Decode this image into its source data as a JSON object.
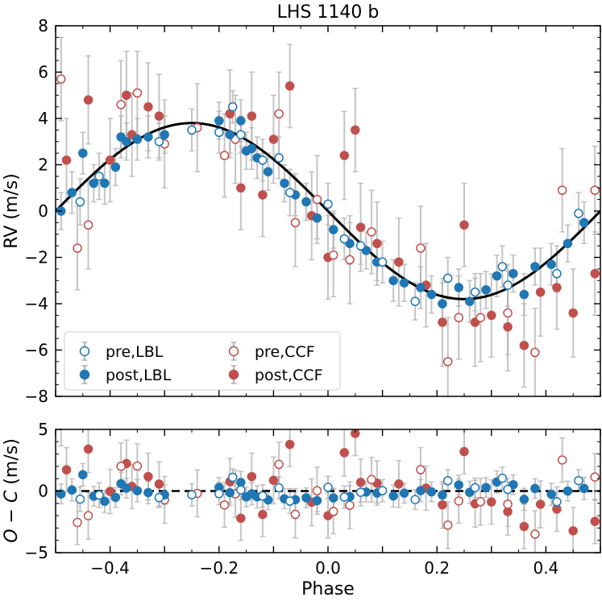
{
  "chart_data": {
    "type": "scatter",
    "title": "LHS 1140 b",
    "xlabel": "Phase",
    "xlim": [
      -0.5,
      0.5
    ],
    "xticks": [
      -0.4,
      -0.2,
      0.0,
      0.2,
      0.4
    ],
    "xtick_labels": [
      "−0.4",
      "−0.2",
      "0.0",
      "0.2",
      "0.4"
    ],
    "colors": {
      "lbl": "#1f77b4",
      "ccf": "#c0504d",
      "model": "#000000",
      "errorbar": "#b0b0b0"
    },
    "legend": {
      "placement": "lower-left",
      "entries": [
        {
          "label": "pre,LBL",
          "series": "pre_lbl"
        },
        {
          "label": "post,LBL",
          "series": "post_lbl"
        },
        {
          "label": "pre,CCF",
          "series": "pre_ccf"
        },
        {
          "label": "post,CCF",
          "series": "post_ccf"
        }
      ]
    },
    "top_panel": {
      "ylabel": "RV (m/s)",
      "ylim": [
        -8,
        8
      ],
      "yticks": [
        -8,
        -6,
        -4,
        -2,
        0,
        2,
        4,
        6,
        8
      ],
      "ytick_labels": [
        "−8",
        "−6",
        "−4",
        "−2",
        "0",
        "2",
        "4",
        "6",
        "8"
      ],
      "model": {
        "type": "sinusoid",
        "amplitude": 3.8,
        "min_phase": 0.25,
        "max_phase": -0.25
      }
    },
    "bottom_panel": {
      "ylabel": "O − C (m/s)",
      "ylim": [
        -5,
        5
      ],
      "yticks": [
        -5,
        0,
        5
      ],
      "ytick_labels": [
        "−5",
        "0",
        "5"
      ],
      "reference_line": 0
    },
    "series": [
      {
        "name": "pre_lbl",
        "label": "pre,LBL",
        "color": "#1f77b4",
        "filled": false,
        "x": [
          -0.455,
          -0.42,
          -0.31,
          -0.25,
          -0.2,
          -0.175,
          -0.16,
          -0.12,
          -0.09,
          -0.07,
          0.0,
          0.03,
          0.06,
          0.1,
          0.16,
          0.22,
          0.27,
          0.32,
          0.33,
          0.42,
          0.46
        ],
        "y": [
          0.4,
          1.5,
          3.0,
          3.5,
          3.4,
          4.5,
          3.3,
          2.2,
          2.3,
          0.8,
          0.3,
          -1.2,
          -1.5,
          -2.2,
          -3.9,
          -2.9,
          -3.5,
          -2.4,
          -3.2,
          -2.7,
          -0.1
        ],
        "yerr": [
          1.0,
          1.0,
          0.8,
          0.9,
          0.9,
          0.7,
          0.8,
          0.9,
          0.9,
          1.0,
          0.9,
          0.9,
          0.8,
          0.9,
          0.8,
          0.9,
          0.8,
          0.9,
          0.9,
          0.8,
          0.9
        ]
      },
      {
        "name": "post_lbl",
        "label": "post,LBL",
        "color": "#1f77b4",
        "filled": true,
        "x": [
          -0.49,
          -0.47,
          -0.45,
          -0.43,
          -0.41,
          -0.39,
          -0.38,
          -0.37,
          -0.35,
          -0.33,
          -0.3,
          -0.2,
          -0.18,
          -0.16,
          -0.15,
          -0.14,
          -0.13,
          -0.11,
          -0.08,
          -0.06,
          -0.04,
          -0.02,
          0.01,
          0.04,
          0.07,
          0.09,
          0.12,
          0.14,
          0.17,
          0.19,
          0.21,
          0.24,
          0.26,
          0.29,
          0.31,
          0.34,
          0.36,
          0.38,
          0.41,
          0.44,
          0.47
        ],
        "y": [
          0.0,
          0.8,
          2.5,
          1.2,
          1.2,
          1.9,
          3.2,
          3.0,
          3.1,
          3.2,
          3.3,
          3.9,
          3.3,
          3.9,
          2.6,
          2.7,
          2.3,
          1.7,
          1.2,
          0.7,
          0.4,
          -0.3,
          -0.8,
          -1.4,
          -1.7,
          -2.2,
          -3.0,
          -3.1,
          -3.3,
          -3.6,
          -4.0,
          -3.3,
          -3.9,
          -3.4,
          -2.8,
          -2.7,
          -3.6,
          -2.4,
          -2.3,
          -1.4,
          -0.5
        ],
        "yerr": [
          0.8,
          0.9,
          0.9,
          0.8,
          0.9,
          0.8,
          0.9,
          0.8,
          0.9,
          0.9,
          0.8,
          0.8,
          0.8,
          0.9,
          0.8,
          0.9,
          0.9,
          0.8,
          0.8,
          0.9,
          0.8,
          0.9,
          0.8,
          0.9,
          0.8,
          0.8,
          0.9,
          0.8,
          0.9,
          0.8,
          0.9,
          0.8,
          0.9,
          0.8,
          0.9,
          0.8,
          0.9,
          0.8,
          0.9,
          0.8,
          0.9
        ]
      },
      {
        "name": "pre_ccf",
        "label": "pre,CCF",
        "color": "#c0504d",
        "filled": false,
        "x": [
          -0.49,
          -0.46,
          -0.44,
          -0.38,
          -0.35,
          -0.3,
          -0.24,
          -0.19,
          -0.17,
          -0.09,
          -0.06,
          -0.02,
          0.01,
          0.04,
          0.08,
          0.17,
          0.22,
          0.24,
          0.28,
          0.33,
          0.38,
          0.43,
          0.49
        ],
        "y": [
          5.7,
          -1.6,
          -0.6,
          4.6,
          5.1,
          2.9,
          3.6,
          2.4,
          3.1,
          4.2,
          -0.5,
          0.5,
          -1.9,
          -2.1,
          -0.9,
          -1.6,
          -6.5,
          -4.6,
          -4.6,
          -4.4,
          -6.1,
          0.9,
          0.9
        ],
        "yerr": [
          1.8,
          1.8,
          1.9,
          1.9,
          1.8,
          1.9,
          1.9,
          1.8,
          1.9,
          1.8,
          1.9,
          1.9,
          1.8,
          1.9,
          1.8,
          1.8,
          1.9,
          1.8,
          1.9,
          1.8,
          1.9,
          1.8,
          1.9
        ]
      },
      {
        "name": "post_ccf",
        "label": "post,CCF",
        "color": "#c0504d",
        "filled": true,
        "x": [
          -0.48,
          -0.44,
          -0.4,
          -0.37,
          -0.36,
          -0.33,
          -0.31,
          -0.18,
          -0.16,
          -0.14,
          -0.12,
          -0.1,
          -0.07,
          -0.03,
          0.0,
          0.03,
          0.05,
          0.06,
          0.09,
          0.13,
          0.18,
          0.21,
          0.25,
          0.27,
          0.3,
          0.33,
          0.36,
          0.39,
          0.42,
          0.45,
          0.49
        ],
        "y": [
          2.2,
          4.8,
          2.2,
          5.0,
          3.3,
          4.5,
          4.1,
          4.2,
          1.0,
          4.1,
          0.7,
          3.1,
          5.4,
          -0.2,
          -2.0,
          2.4,
          3.5,
          -0.7,
          -1.4,
          -2.2,
          -3.2,
          -4.8,
          -0.6,
          -4.8,
          -4.5,
          -5.0,
          -5.8,
          -3.5,
          -3.3,
          -4.4,
          -2.7
        ],
        "yerr": [
          1.8,
          1.9,
          1.8,
          1.9,
          1.8,
          1.9,
          1.8,
          1.9,
          1.8,
          1.9,
          1.8,
          1.9,
          1.8,
          1.9,
          1.8,
          1.9,
          1.8,
          1.9,
          1.8,
          1.9,
          1.8,
          1.9,
          1.8,
          1.9,
          1.8,
          1.9,
          1.8,
          1.9,
          1.8,
          1.9,
          1.8
        ]
      }
    ]
  }
}
